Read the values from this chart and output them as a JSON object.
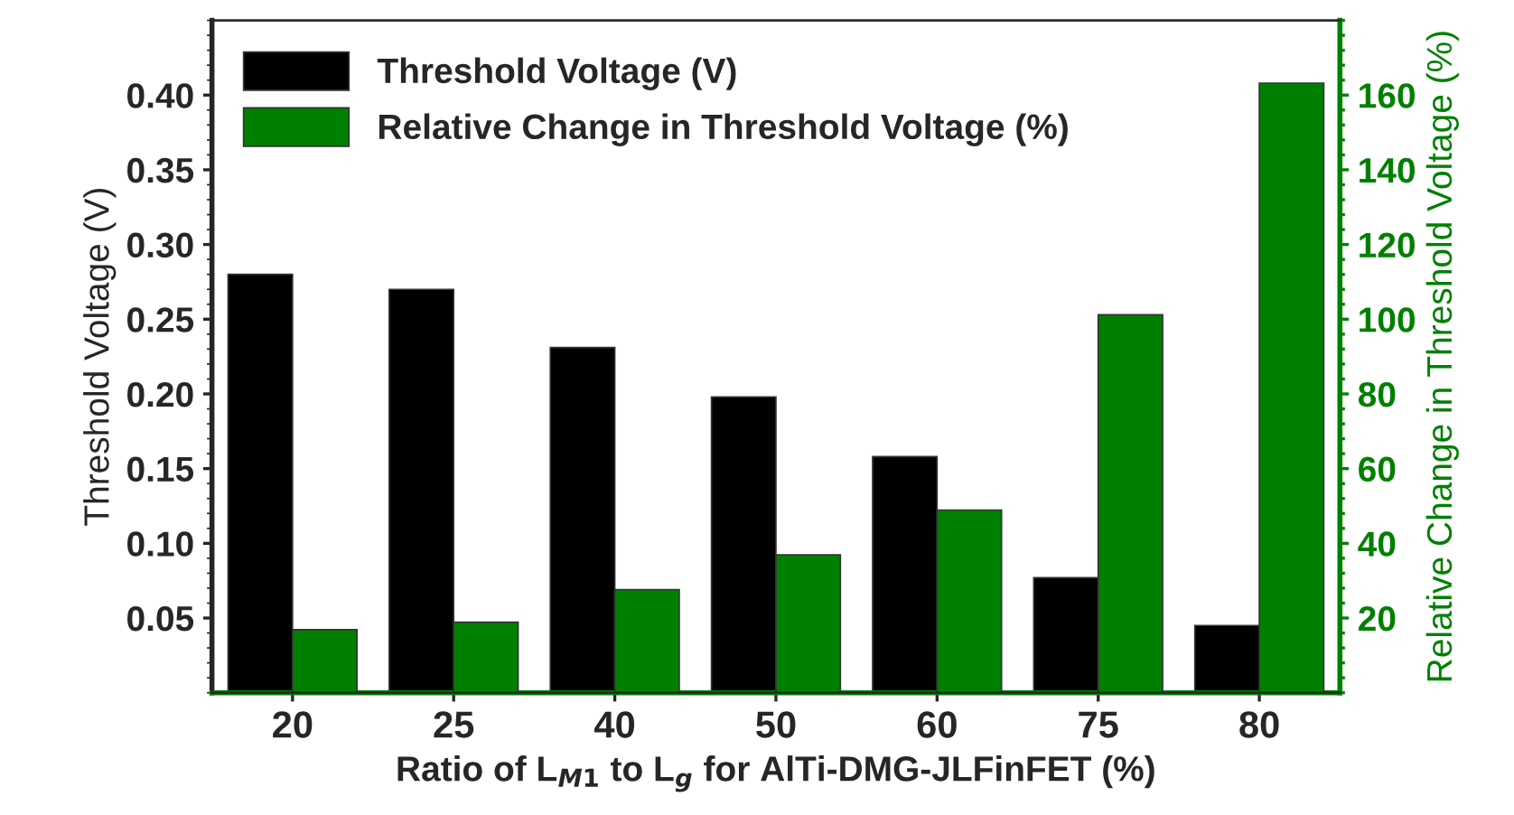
{
  "chart_data": {
    "type": "bar",
    "xlabel": "Ratio of L$_{M1}$ to L$_{g}$ for AlTi-DMG-JLFinFET (%)",
    "ylabel": "Threshold Voltage (V)",
    "y2label": "Relative Change in Threshold Voltage (%)",
    "categories": [
      "20",
      "25",
      "40",
      "50",
      "60",
      "75",
      "80"
    ],
    "series": [
      {
        "name": "Threshold Voltage (V)",
        "color": "#000000",
        "values": [
          0.28,
          0.27,
          0.231,
          0.198,
          0.158,
          0.077,
          0.045
        ]
      },
      {
        "name": "Relative Change in Threshold Voltage (%)",
        "color": "#008000",
        "axis": "y2",
        "values": [
          16.9,
          18.9,
          27.6,
          36.9,
          48.9,
          101.2,
          163.2
        ]
      }
    ],
    "ylim": [
      0,
      0.45
    ],
    "yticks": [
      {
        "value": 0.05,
        "label": "0.05"
      },
      {
        "value": 0.1,
        "label": "0.10"
      },
      {
        "value": 0.15,
        "label": "0.15"
      },
      {
        "value": 0.2,
        "label": "0.20"
      },
      {
        "value": 0.25,
        "label": "0.25"
      },
      {
        "value": 0.3,
        "label": "0.30"
      },
      {
        "value": 0.35,
        "label": "0.35"
      },
      {
        "value": 0.4,
        "label": "0.40"
      }
    ],
    "y2lim": [
      0,
      180
    ],
    "y2ticks": [
      20,
      40,
      60,
      80,
      100,
      120,
      140,
      160
    ],
    "legend": "top left",
    "grid": false
  }
}
